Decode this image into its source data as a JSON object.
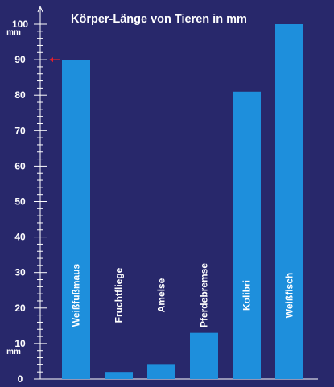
{
  "chart_data": {
    "type": "bar",
    "title": "Körper-Länge von Tieren in mm",
    "categories": [
      "Weißfußmaus",
      "Fruchtfliege",
      "Ameise",
      "Pferdebremse",
      "Kolibri",
      "Weißfisch"
    ],
    "values": [
      90,
      2,
      4,
      13,
      81,
      100
    ],
    "unit": "mm",
    "ylim": [
      0,
      100
    ],
    "yticks": [
      0,
      10,
      20,
      30,
      40,
      50,
      60,
      70,
      80,
      90,
      100
    ],
    "grid": false,
    "legend": "none",
    "marker_value": 90,
    "colors": {
      "background": "#28286b",
      "bar": "#1e8fdc",
      "text": "#ffffff",
      "marker": "#e8202a"
    }
  }
}
